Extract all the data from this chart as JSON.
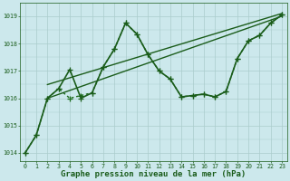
{
  "title": "Graphe pression niveau de la mer (hPa)",
  "background_color": "#cce8ec",
  "grid_color": "#aacccc",
  "xlim": [
    -0.5,
    23.5
  ],
  "ylim": [
    1013.7,
    1019.5
  ],
  "xticks": [
    0,
    1,
    2,
    3,
    4,
    5,
    6,
    7,
    8,
    9,
    10,
    11,
    12,
    13,
    14,
    15,
    16,
    17,
    18,
    19,
    20,
    21,
    22,
    23
  ],
  "yticks": [
    1014,
    1015,
    1016,
    1017,
    1018,
    1019
  ],
  "series": [
    {
      "x": [
        0,
        1,
        2,
        3,
        4,
        5,
        6,
        7,
        8,
        9,
        10,
        11,
        12,
        13,
        14,
        15,
        16,
        17,
        18,
        19,
        20,
        21,
        22,
        23
      ],
      "y": [
        1014.0,
        1014.65,
        1016.0,
        1016.35,
        1016.0,
        1016.1,
        1016.2,
        1017.15,
        1017.8,
        1018.75,
        1018.35,
        1017.6,
        1017.0,
        1016.7,
        1016.05,
        1016.1,
        1016.15,
        1016.05,
        1016.25,
        1017.45,
        1018.1,
        1018.3,
        1018.75,
        1019.05
      ],
      "style": "dotted",
      "marker": "+",
      "color": "#1a6b1a",
      "linewidth": 1.0,
      "markersize": 4
    },
    {
      "x": [
        2,
        23
      ],
      "y": [
        1016.0,
        1019.0
      ],
      "style": "solid",
      "marker": null,
      "color": "#1a5c1a",
      "linewidth": 1.0
    },
    {
      "x": [
        2,
        23
      ],
      "y": [
        1016.5,
        1019.1
      ],
      "style": "solid",
      "marker": null,
      "color": "#1a5c1a",
      "linewidth": 1.0
    },
    {
      "x": [
        0,
        1,
        2,
        3,
        4,
        5,
        6,
        7,
        8,
        9,
        10,
        11,
        12,
        13,
        14,
        15,
        16,
        17,
        18,
        19,
        20,
        21,
        22,
        23
      ],
      "y": [
        1014.0,
        1014.65,
        1016.0,
        1016.35,
        1017.05,
        1016.0,
        1016.2,
        1017.15,
        1017.8,
        1018.75,
        1018.35,
        1017.6,
        1017.0,
        1016.7,
        1016.05,
        1016.1,
        1016.15,
        1016.05,
        1016.25,
        1017.45,
        1018.1,
        1018.3,
        1018.75,
        1019.05
      ],
      "style": "solid",
      "marker": "+",
      "color": "#1a5c1a",
      "linewidth": 1.2,
      "markersize": 4
    }
  ],
  "font_color": "#1a5c1a",
  "title_fontsize": 6.5,
  "tick_fontsize": 4.8
}
